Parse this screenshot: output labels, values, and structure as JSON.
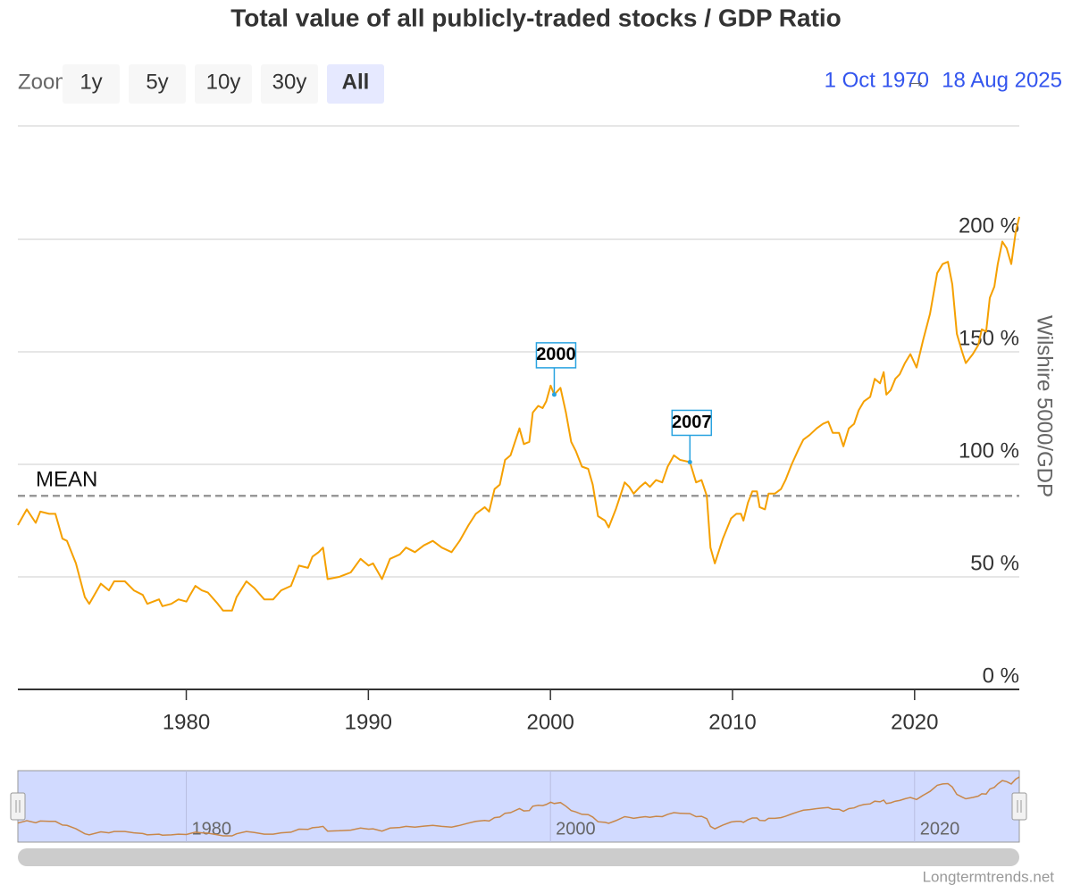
{
  "chart_data": {
    "type": "line",
    "title": "Total value of all publicly-traded stocks / GDP Ratio",
    "zoom_label": "Zoom",
    "zoom_buttons": [
      "1y",
      "5y",
      "10y",
      "30y",
      "All"
    ],
    "selected_button": "All",
    "range_start": "1 Oct 1970",
    "range_separator": "→",
    "range_end": "18 Aug 2025",
    "y_axis_title": "Wilshire 5000/GDP",
    "credits": "Longtermtrends.net",
    "color": "#f5a000",
    "grid": true,
    "x": [
      1970.75,
      1971.24,
      1971.73,
      1971.98,
      1972.47,
      1972.81,
      1973.2,
      1973.45,
      1973.94,
      1974.43,
      1974.67,
      1975.31,
      1975.75,
      1976.04,
      1976.63,
      1977.12,
      1977.61,
      1977.86,
      1978.5,
      1978.69,
      1979.18,
      1979.57,
      1980.01,
      1980.21,
      1980.5,
      1980.85,
      1981.19,
      1981.73,
      1982.02,
      1982.51,
      1982.76,
      1983.3,
      1983.74,
      1984.28,
      1984.77,
      1985.21,
      1985.75,
      1986.19,
      1986.68,
      1986.93,
      1987.27,
      1987.51,
      1987.76,
      1988.4,
      1989.03,
      1989.57,
      1990.01,
      1990.26,
      1990.75,
      1991.19,
      1991.73,
      1992.07,
      1992.56,
      1993.05,
      1993.54,
      1994.03,
      1994.57,
      1995.01,
      1995.5,
      1995.9,
      1996.39,
      1996.63,
      1996.93,
      1997.22,
      1997.51,
      1997.81,
      1998.3,
      1998.54,
      1998.84,
      1999.03,
      1999.33,
      1999.57,
      1999.77,
      2000.01,
      2000.21,
      2000.55,
      2000.85,
      2001.14,
      2001.39,
      2001.73,
      2002.07,
      2002.32,
      2002.61,
      2003.0,
      2003.2,
      2003.59,
      2004.08,
      2004.33,
      2004.57,
      2004.92,
      2005.21,
      2005.46,
      2005.8,
      2006.14,
      2006.44,
      2006.78,
      2007.12,
      2007.66,
      2008.0,
      2008.3,
      2008.59,
      2008.79,
      2009.03,
      2009.47,
      2009.92,
      2010.21,
      2010.46,
      2010.6,
      2010.85,
      2011.09,
      2011.34,
      2011.49,
      2011.78,
      2011.98,
      2012.32,
      2012.66,
      2012.91,
      2013.25,
      2013.64,
      2013.89,
      2014.23,
      2014.62,
      2014.97,
      2015.26,
      2015.5,
      2015.85,
      2016.09,
      2016.39,
      2016.68,
      2016.93,
      2017.22,
      2017.56,
      2017.81,
      2018.1,
      2018.3,
      2018.45,
      2018.69,
      2018.94,
      2019.18,
      2019.47,
      2019.77,
      2020.11,
      2020.46,
      2020.85,
      2021.24,
      2021.54,
      2021.83,
      2022.07,
      2022.32,
      2022.61,
      2022.81,
      2023.2,
      2023.5,
      2023.69,
      2023.93,
      2024.13,
      2024.38,
      2024.57,
      2024.82,
      2025.06,
      2025.31,
      2025.55,
      2025.75
    ],
    "values": [
      73,
      80,
      74,
      79,
      78,
      78,
      67,
      66,
      56,
      41,
      38,
      47,
      44,
      48,
      48,
      44,
      42,
      38,
      40,
      37,
      38,
      40,
      39,
      42,
      46,
      44,
      43,
      38,
      35,
      35,
      41,
      48,
      45,
      40,
      40,
      44,
      46,
      55,
      54,
      59,
      61,
      63,
      49,
      50,
      52,
      58,
      55,
      56,
      49,
      58,
      60,
      63,
      61,
      64,
      66,
      63,
      61,
      66,
      73,
      78,
      81,
      79,
      89,
      91,
      102,
      104,
      116,
      109,
      110,
      123,
      126,
      125,
      128,
      135,
      131,
      134,
      123,
      110,
      106,
      99,
      98,
      91,
      77,
      75,
      72,
      80,
      92,
      90,
      87,
      90,
      92,
      90,
      93,
      92,
      99,
      104,
      102,
      101,
      92,
      93,
      86,
      63,
      56,
      67,
      76,
      78,
      78,
      75,
      83,
      88,
      88,
      81,
      80,
      87,
      87,
      89,
      93,
      100,
      107,
      111,
      113,
      116,
      118,
      119,
      114,
      114,
      108,
      116,
      118,
      124,
      128,
      130,
      138,
      136,
      141,
      131,
      133,
      138,
      140,
      145,
      149,
      143,
      155,
      167,
      185,
      189,
      190,
      180,
      158,
      150,
      145,
      149,
      153,
      160,
      159,
      174,
      179,
      189,
      199,
      196,
      189,
      203,
      210
    ],
    "xlim": [
      1970.75,
      2025.75
    ],
    "xticks": [
      1980,
      1990,
      2000,
      2010,
      2020
    ],
    "ylim": [
      0,
      250
    ],
    "yticks": [
      {
        "value": 0,
        "label": "0 %"
      },
      {
        "value": 50,
        "label": "50 %"
      },
      {
        "value": 100,
        "label": "100 %"
      },
      {
        "value": 150,
        "label": "150 %"
      },
      {
        "value": 200,
        "label": "200 %"
      }
    ],
    "mean": {
      "label": "MEAN",
      "value": 86
    },
    "annotations": [
      {
        "text": "2000",
        "x": 2000.21,
        "y": 131
      },
      {
        "text": "2007",
        "x": 2007.66,
        "y": 101
      }
    ],
    "navigator_xticks": [
      1980,
      2000,
      2020
    ]
  }
}
